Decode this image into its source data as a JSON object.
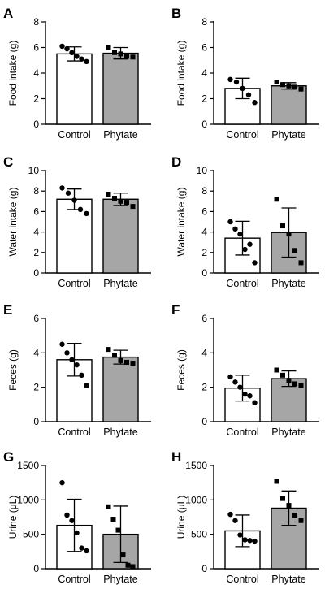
{
  "colors": {
    "control_fill": "#ffffff",
    "phytate_fill": "#a6a6a6",
    "stroke": "#000000"
  },
  "chart_data": [
    {
      "panel": "A",
      "type": "bar",
      "ylabel": "Food intake (g)",
      "categories": [
        "Control",
        "Phytate"
      ],
      "ylim": [
        0,
        8
      ],
      "yticks": [
        0,
        2,
        4,
        6,
        8
      ],
      "ytick_labels": [
        "0",
        "2",
        "4",
        "6",
        "8"
      ],
      "series": [
        {
          "mean": 5.5,
          "sd": 0.55,
          "marker": "circle",
          "points": [
            6.1,
            5.9,
            5.6,
            5.3,
            5.1,
            4.9
          ]
        },
        {
          "mean": 5.55,
          "sd": 0.45,
          "marker": "square",
          "points": [
            6.0,
            5.6,
            5.5,
            5.3,
            5.25
          ]
        }
      ]
    },
    {
      "panel": "B",
      "type": "bar",
      "ylabel": "Food intake (g)",
      "categories": [
        "Control",
        "Phytate"
      ],
      "ylim": [
        0,
        8
      ],
      "yticks": [
        0,
        2,
        4,
        6,
        8
      ],
      "ytick_labels": [
        "0",
        "2",
        "4",
        "6",
        "8"
      ],
      "series": [
        {
          "mean": 2.8,
          "sd": 0.8,
          "marker": "circle",
          "points": [
            3.5,
            3.3,
            2.8,
            2.3,
            1.7
          ]
        },
        {
          "mean": 3.0,
          "sd": 0.25,
          "marker": "square",
          "points": [
            3.3,
            3.1,
            3.0,
            2.9,
            2.75
          ]
        }
      ]
    },
    {
      "panel": "C",
      "type": "bar",
      "ylabel": "Water intake (g)",
      "categories": [
        "Control",
        "Phytate"
      ],
      "ylim": [
        0,
        10
      ],
      "yticks": [
        0,
        2,
        4,
        6,
        8,
        10
      ],
      "ytick_labels": [
        "0",
        "2",
        "4",
        "6",
        "8",
        "10"
      ],
      "series": [
        {
          "mean": 7.2,
          "sd": 1.0,
          "marker": "circle",
          "points": [
            8.3,
            7.8,
            7.1,
            6.2,
            5.8
          ]
        },
        {
          "mean": 7.2,
          "sd": 0.6,
          "marker": "square",
          "points": [
            7.7,
            7.3,
            7.0,
            6.9,
            6.5
          ]
        }
      ]
    },
    {
      "panel": "D",
      "type": "bar",
      "ylabel": "Water intake (g)",
      "categories": [
        "Control",
        "Phytate"
      ],
      "ylim": [
        0,
        10
      ],
      "yticks": [
        0,
        2,
        4,
        6,
        8,
        10
      ],
      "ytick_labels": [
        "0",
        "2",
        "4",
        "6",
        "8",
        "10"
      ],
      "series": [
        {
          "mean": 3.4,
          "sd": 1.65,
          "marker": "circle",
          "points": [
            5.0,
            4.3,
            3.8,
            2.3,
            2.8,
            1.0
          ]
        },
        {
          "mean": 3.95,
          "sd": 2.4,
          "marker": "square",
          "points": [
            7.2,
            4.6,
            3.8,
            2.2,
            1.0
          ]
        }
      ]
    },
    {
      "panel": "E",
      "type": "bar",
      "ylabel": "Feces (g)",
      "categories": [
        "Control",
        "Phytate"
      ],
      "ylim": [
        0,
        6
      ],
      "yticks": [
        0,
        2,
        4,
        6
      ],
      "ytick_labels": [
        "0",
        "2",
        "4",
        "6"
      ],
      "series": [
        {
          "mean": 3.6,
          "sd": 0.95,
          "marker": "circle",
          "points": [
            4.5,
            4.0,
            3.6,
            3.3,
            2.7,
            2.1
          ]
        },
        {
          "mean": 3.75,
          "sd": 0.4,
          "marker": "square",
          "points": [
            4.2,
            3.85,
            3.55,
            3.45,
            3.4
          ]
        }
      ]
    },
    {
      "panel": "F",
      "type": "bar",
      "ylabel": "Feces (g)",
      "categories": [
        "Control",
        "Phytate"
      ],
      "ylim": [
        0,
        6
      ],
      "yticks": [
        0,
        2,
        4,
        6
      ],
      "ytick_labels": [
        "0",
        "2",
        "4",
        "6"
      ],
      "series": [
        {
          "mean": 1.95,
          "sd": 0.75,
          "marker": "circle",
          "points": [
            2.6,
            2.3,
            2.0,
            1.6,
            1.5,
            1.1
          ]
        },
        {
          "mean": 2.5,
          "sd": 0.45,
          "marker": "square",
          "points": [
            3.0,
            2.7,
            2.4,
            2.2,
            2.1
          ]
        }
      ]
    },
    {
      "panel": "G",
      "type": "bar",
      "ylabel": "Urine (μL)",
      "categories": [
        "Control",
        "Phytate"
      ],
      "ylim": [
        0,
        1500
      ],
      "yticks": [
        0,
        500,
        1000,
        1500
      ],
      "ytick_labels": [
        "0",
        "500",
        "1000",
        "1500"
      ],
      "series": [
        {
          "mean": 630,
          "sd": 380,
          "marker": "circle",
          "points": [
            1250,
            780,
            700,
            520,
            300,
            260
          ]
        },
        {
          "mean": 500,
          "sd": 410,
          "marker": "square",
          "points": [
            900,
            720,
            560,
            200,
            50,
            30
          ]
        }
      ]
    },
    {
      "panel": "H",
      "type": "bar",
      "ylabel": "Urine (μL)",
      "categories": [
        "Control",
        "Phytate"
      ],
      "ylim": [
        0,
        1500
      ],
      "yticks": [
        0,
        500,
        1000,
        1500
      ],
      "ytick_labels": [
        "0",
        "500",
        "1000",
        "1500"
      ],
      "series": [
        {
          "mean": 550,
          "sd": 230,
          "marker": "circle",
          "points": [
            790,
            700,
            490,
            420,
            410,
            400
          ]
        },
        {
          "mean": 880,
          "sd": 250,
          "marker": "square",
          "points": [
            1270,
            1020,
            920,
            780,
            700
          ]
        }
      ]
    }
  ]
}
